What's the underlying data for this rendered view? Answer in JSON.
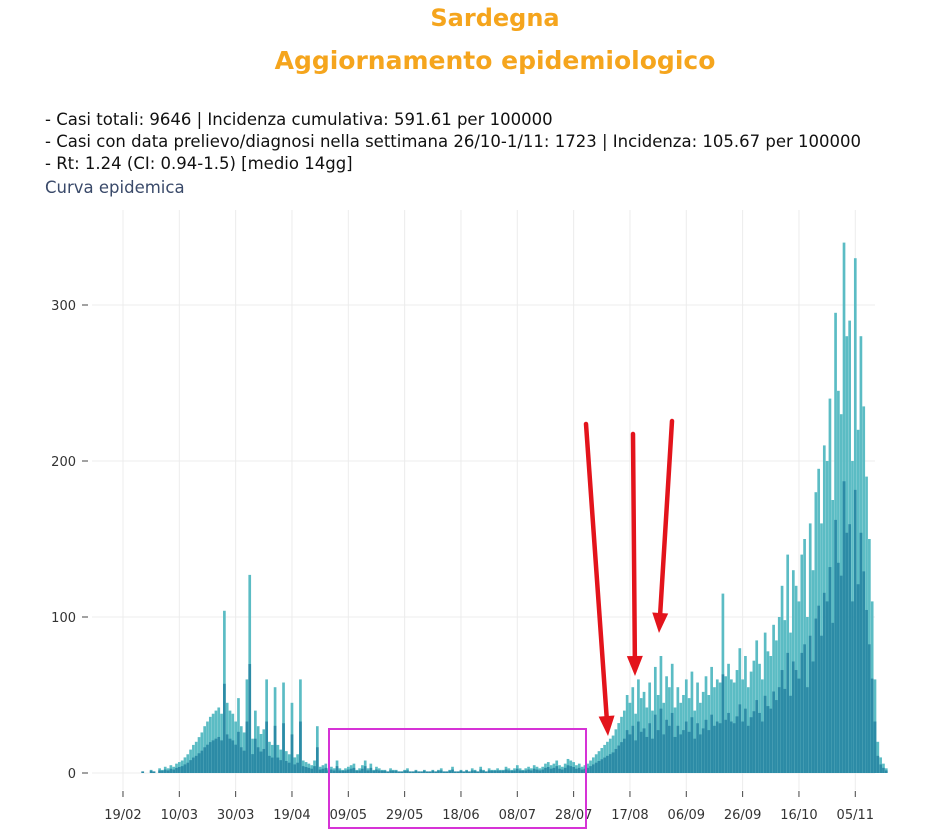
{
  "header": {
    "region": "Sardegna",
    "subtitle": "Aggiornamento epidemiologico"
  },
  "stats": {
    "line1": "- Casi totali: 9646 | Incidenza cumulativa: 591.61 per 100000",
    "line2": "- Casi con data prelievo/diagnosi nella settimana 26/10-1/11: 1723 | Incidenza: 105.67 per 100000",
    "line3": "- Rt: 1.24 (CI: 0.94-1.5) [medio 14gg]"
  },
  "chart_label": "Curva epidemica",
  "colors": {
    "title": "#f5a51d",
    "bar_light": "#5bbcc4",
    "bar_dark": "#2c8ba6",
    "arrow": "#e3141c",
    "highlight_box": "#d633d6"
  },
  "chart_data": {
    "type": "bar",
    "title": "Curva epidemica",
    "xlabel": "",
    "ylabel": "",
    "x_ticks": [
      "19/02",
      "10/03",
      "30/03",
      "19/04",
      "09/05",
      "29/05",
      "18/06",
      "08/07",
      "28/07",
      "17/08",
      "06/09",
      "26/09",
      "16/10",
      "05/11"
    ],
    "y_ticks": [
      "0",
      "100",
      "200",
      "300"
    ],
    "ylim": [
      0,
      355
    ],
    "xlim": [
      "2020-02-08",
      "2020-11-12"
    ],
    "grid": true,
    "start_date": "2020-02-20",
    "series": [
      {
        "name": "",
        "values": [
          0,
          0,
          0,
          0,
          0,
          0,
          1,
          0,
          0,
          2,
          1,
          0,
          3,
          2,
          4,
          3,
          5,
          4,
          6,
          7,
          8,
          10,
          12,
          15,
          18,
          20,
          23,
          26,
          30,
          33,
          36,
          38,
          40,
          42,
          38,
          104,
          45,
          40,
          38,
          33,
          48,
          30,
          26,
          60,
          127,
          22,
          40,
          30,
          25,
          28,
          60,
          20,
          18,
          55,
          18,
          15,
          58,
          14,
          12,
          45,
          10,
          12,
          60,
          8,
          7,
          6,
          5,
          8,
          30,
          4,
          5,
          6,
          3,
          4,
          3,
          8,
          3,
          2,
          3,
          4,
          5,
          6,
          2,
          3,
          5,
          8,
          3,
          6,
          2,
          4,
          3,
          2,
          2,
          1,
          3,
          2,
          2,
          1,
          1,
          2,
          3,
          1,
          1,
          2,
          1,
          1,
          2,
          1,
          1,
          2,
          1,
          2,
          3,
          1,
          1,
          2,
          4,
          1,
          1,
          2,
          1,
          2,
          1,
          3,
          2,
          1,
          4,
          2,
          1,
          3,
          2,
          2,
          3,
          2,
          2,
          4,
          3,
          2,
          3,
          5,
          3,
          2,
          3,
          4,
          3,
          5,
          4,
          3,
          4,
          6,
          7,
          5,
          6,
          8,
          5,
          4,
          6,
          9,
          8,
          7,
          5,
          6,
          4,
          5,
          6,
          8,
          10,
          12,
          14,
          16,
          18,
          20,
          22,
          24,
          28,
          32,
          36,
          40,
          50,
          45,
          55,
          38,
          60,
          48,
          52,
          42,
          58,
          40,
          68,
          50,
          75,
          45,
          62,
          55,
          70,
          42,
          55,
          45,
          50,
          60,
          48,
          65,
          40,
          58,
          45,
          52,
          62,
          50,
          68,
          55,
          60,
          58,
          115,
          62,
          70,
          60,
          58,
          66,
          80,
          60,
          75,
          55,
          65,
          72,
          85,
          70,
          60,
          90,
          78,
          75,
          95,
          85,
          100,
          120,
          98,
          140,
          90,
          130,
          120,
          110,
          140,
          150,
          100,
          160,
          130,
          180,
          195,
          160,
          210,
          200,
          240,
          175,
          295,
          245,
          230,
          340,
          280,
          290,
          200,
          330,
          220,
          280,
          235,
          190,
          150,
          110,
          60,
          20,
          10,
          6,
          3
        ]
      }
    ]
  }
}
